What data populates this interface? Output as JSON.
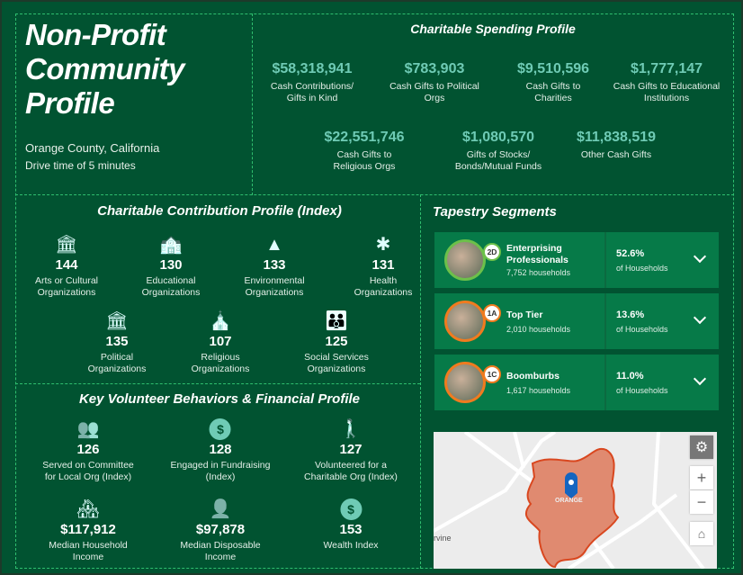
{
  "header": {
    "title_lines": [
      "Non-Profit",
      "Community",
      "Profile"
    ],
    "location": "Orange County, California",
    "drive_time": "Drive time of 5 minutes"
  },
  "spending": {
    "title": "Charitable Spending Profile",
    "items": [
      {
        "value": "$58,318,941",
        "label1": "Cash Contributions/",
        "label2": "Gifts in Kind"
      },
      {
        "value": "$783,903",
        "label1": "Cash Gifts to Political",
        "label2": "Orgs"
      },
      {
        "value": "$9,510,596",
        "label1": "Cash Gifts to",
        "label2": "Charities"
      },
      {
        "value": "$1,777,147",
        "label1": "Cash Gifts to Educational",
        "label2": "Institutions"
      },
      {
        "value": "$22,551,746",
        "label1": "Cash Gifts to",
        "label2": "Religious Orgs"
      },
      {
        "value": "$1,080,570",
        "label1": "Gifts of Stocks/",
        "label2": "Bonds/Mutual Funds"
      },
      {
        "value": "$11,838,519",
        "label1": "Other Cash Gifts",
        "label2": ""
      }
    ]
  },
  "contribution": {
    "title": "Charitable Contribution Profile (Index)",
    "items": [
      {
        "icon": "museum-icon",
        "value": "144",
        "label1": "Arts or Cultural",
        "label2": "Organizations"
      },
      {
        "icon": "school-icon",
        "value": "130",
        "label1": "Educational",
        "label2": "Organizations"
      },
      {
        "icon": "tree-icon",
        "value": "133",
        "label1": "Environmental",
        "label2": "Organizations"
      },
      {
        "icon": "medical-star-icon",
        "value": "131",
        "label1": "Health",
        "label2": "Organizations"
      },
      {
        "icon": "government-building-icon",
        "value": "135",
        "label1": "Political",
        "label2": "Organizations"
      },
      {
        "icon": "church-icon",
        "value": "107",
        "label1": "Religious",
        "label2": "Organizations"
      },
      {
        "icon": "family-icon",
        "value": "125",
        "label1": "Social Services",
        "label2": "Organizations"
      }
    ]
  },
  "volunteer": {
    "title": "Key Volunteer Behaviors & Financial Profile",
    "items": [
      {
        "icon": "group-icon",
        "value": "126",
        "label1": "Served on Committee",
        "label2": "for Local Org (Index)"
      },
      {
        "icon": "dollar-coin-icon",
        "value": "128",
        "label1": "Engaged in Fundraising",
        "label2": "(Index)"
      },
      {
        "icon": "person-mowing-icon",
        "value": "127",
        "label1": "Volunteered for a",
        "label2": "Charitable Org (Index)"
      },
      {
        "icon": "house-coins-icon",
        "value": "$117,912",
        "label1": "Median Household",
        "label2": "Income"
      },
      {
        "icon": "person-coins-icon",
        "value": "$97,878",
        "label1": "Median Disposable",
        "label2": "Income"
      },
      {
        "icon": "dollar-coin-icon",
        "value": "153",
        "label1": "Wealth Index",
        "label2": ""
      }
    ]
  },
  "tapestry": {
    "title": "Tapestry Segments",
    "segments": [
      {
        "code": "2D",
        "name1": "Enterprising",
        "name2": "Professionals",
        "households": "7,752 households",
        "percent": "52.6%",
        "of": "of Households",
        "ring": "#6cc04a"
      },
      {
        "code": "1A",
        "name1": "Top Tier",
        "name2": "",
        "households": "2,010 households",
        "percent": "13.6%",
        "of": "of Households",
        "ring": "#f07b1f"
      },
      {
        "code": "1C",
        "name1": "Boomburbs",
        "name2": "",
        "households": "1,617 households",
        "percent": "11.0%",
        "of": "of Households",
        "ring": "#f07b1f"
      }
    ]
  },
  "map": {
    "place_label": "ORANGE",
    "city_label": "rvine",
    "zoom_in": "+",
    "zoom_out": "−"
  },
  "colors": {
    "background": "#015331",
    "accent": "#6fcbb5",
    "card": "#067a48",
    "area_fill": "#e08a70"
  }
}
